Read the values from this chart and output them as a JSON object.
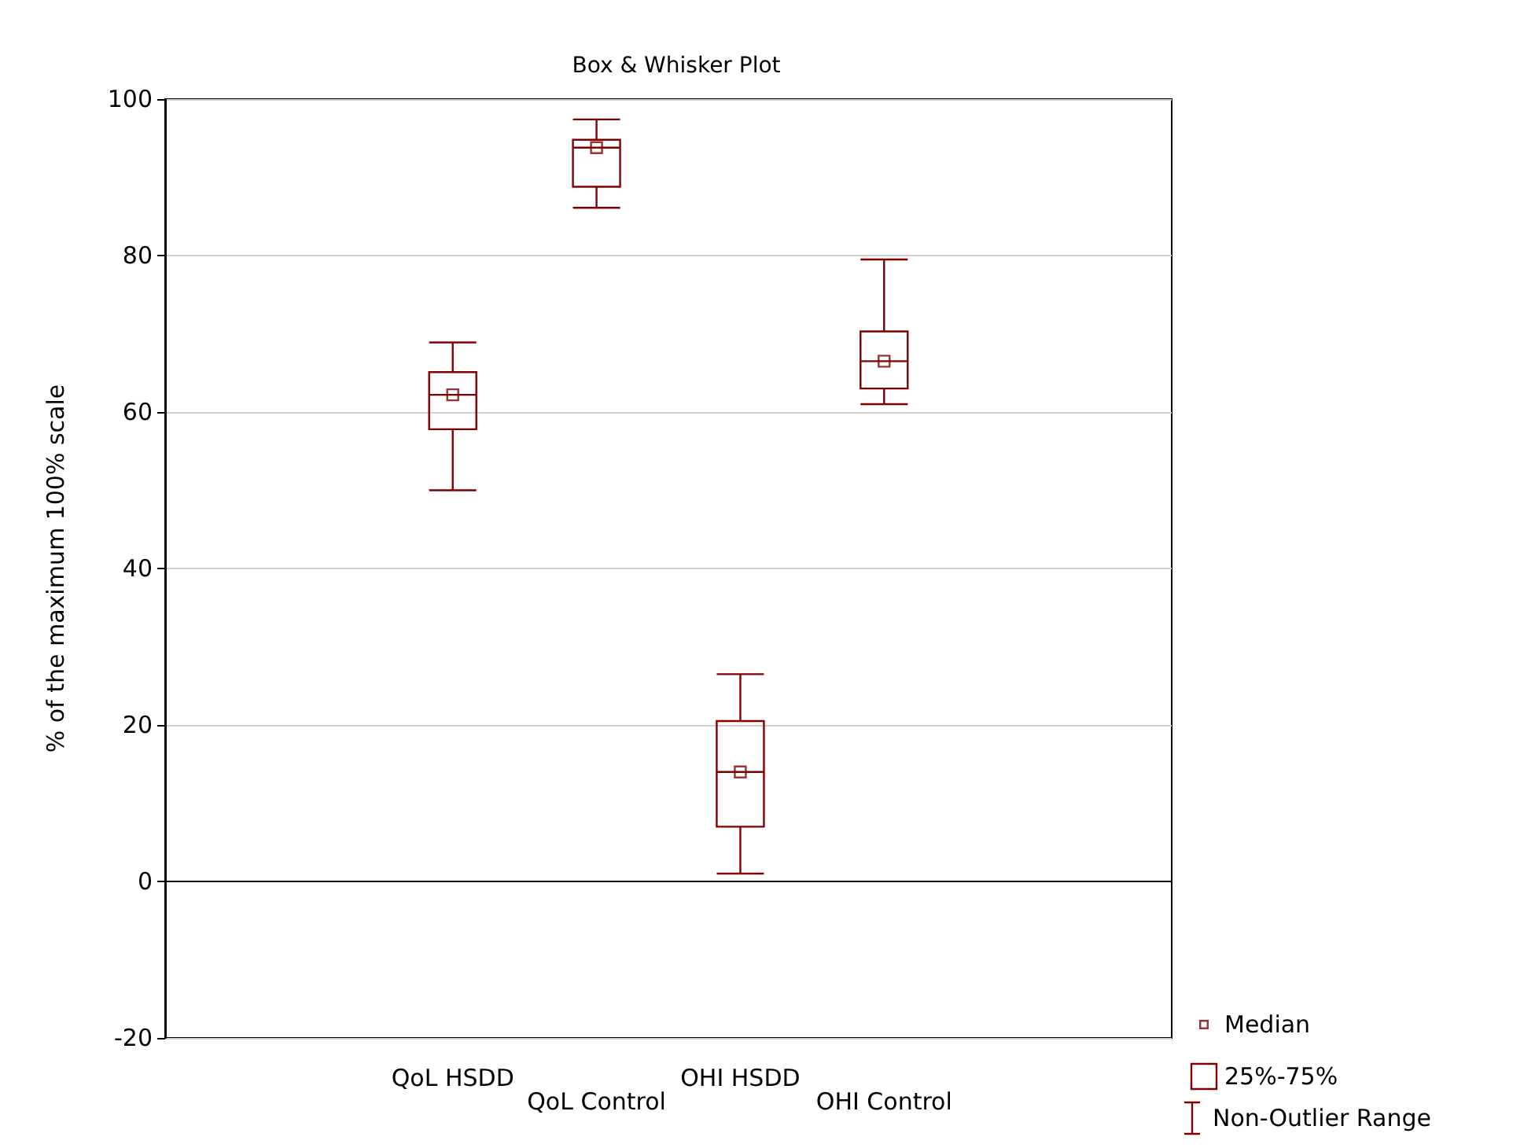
{
  "chart_data": {
    "type": "box",
    "title": "Box & Whisker Plot",
    "ylabel": "% of the maximum 100% scale",
    "categories": [
      null,
      null,
      "QoL HSDD",
      "QoL Control",
      "OHI HSDD",
      "OHI Control",
      null,
      null
    ],
    "series": [
      {
        "type": "scatter",
        "name": "Median",
        "color": "#800000",
        "marker": "square",
        "x": [
          "QoL HSDD",
          "QoL Control",
          "OHI HSDD",
          "OHI Control"
        ],
        "values": [
          62.2,
          93.8,
          14,
          66.5
        ]
      },
      {
        "name": "25%-75%",
        "color": "#800000",
        "boxes": [
          null,
          null,
          {
            "low": 50,
            "q1": 57.8,
            "median": 62.2,
            "q3": 65.1,
            "high": 68.9
          },
          {
            "low": 86.1,
            "q1": 88.8,
            "median": 93.8,
            "q3": 94.8,
            "high": 97.4
          },
          {
            "low": 1,
            "q1": 7,
            "median": 14,
            "q3": 20.5,
            "high": 26.5
          },
          {
            "low": 61,
            "q1": 63,
            "median": 66.5,
            "q3": 70.3,
            "high": 79.5
          },
          null,
          null
        ]
      }
    ],
    "ylim": [
      -20,
      100
    ],
    "yticks": [
      -20,
      0,
      20,
      40,
      60,
      80,
      100
    ],
    "grid": "y",
    "legend": "bottom right",
    "annotations": [
      "Non-Outlier Range"
    ]
  }
}
